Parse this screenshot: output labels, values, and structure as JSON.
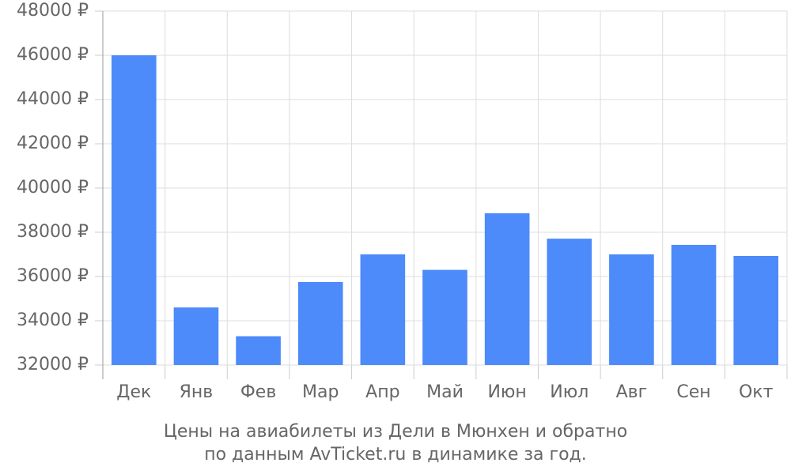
{
  "chart_data": {
    "type": "bar",
    "caption": [
      "Цены на авиабилеты из Дели в Мюнхен и обратно",
      "по данным AvTicket.ru в динамике за год."
    ],
    "categories": [
      "Дек",
      "Янв",
      "Фев",
      "Мар",
      "Апр",
      "Май",
      "Июн",
      "Июл",
      "Авг",
      "Сен",
      "Окт"
    ],
    "values": [
      46000,
      34600,
      33300,
      35750,
      37000,
      36300,
      38860,
      37710,
      37000,
      37430,
      36930
    ],
    "color": "#4d8afa",
    "ylim": [
      32000,
      48000
    ],
    "yticks": [
      {
        "value": 32000,
        "label": "32000 ₽"
      },
      {
        "value": 34000,
        "label": "34000 ₽"
      },
      {
        "value": 36000,
        "label": "36000 ₽"
      },
      {
        "value": 38000,
        "label": "38000 ₽"
      },
      {
        "value": 40000,
        "label": "40000 ₽"
      },
      {
        "value": 42000,
        "label": "42000 ₽"
      },
      {
        "value": 44000,
        "label": "44000 ₽"
      },
      {
        "value": 46000,
        "label": "46000 ₽"
      },
      {
        "value": 48000,
        "label": "48000 ₽"
      }
    ],
    "grid": true
  }
}
